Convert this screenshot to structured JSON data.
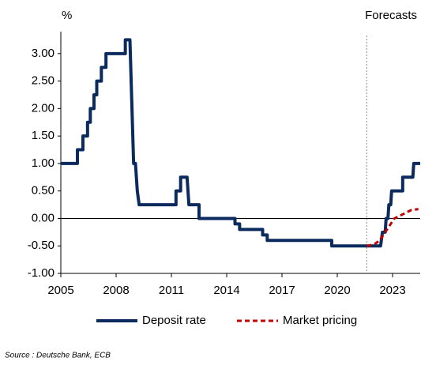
{
  "chart_data": {
    "type": "line",
    "y_label": "%",
    "annotation": "Forecasts",
    "forecast_line": 2021.6,
    "source": "Source : Deutsche Bank, ECB",
    "xlim": [
      2005,
      2024.5
    ],
    "xticks": [
      2005,
      2008,
      2011,
      2014,
      2017,
      2020,
      2023
    ],
    "ylim": [
      -1,
      3.4
    ],
    "yticks": [
      {
        "value": -1,
        "label": "-1.00"
      },
      {
        "value": -0.5,
        "label": "-0.50"
      },
      {
        "value": 0,
        "label": "0.00"
      },
      {
        "value": 0.5,
        "label": "0.50"
      },
      {
        "value": 1,
        "label": "1.00"
      },
      {
        "value": 1.5,
        "label": "1.50"
      },
      {
        "value": 2,
        "label": "2.00"
      },
      {
        "value": 2.5,
        "label": "2.50"
      },
      {
        "value": 3,
        "label": "3.00"
      }
    ],
    "legend": "bottom",
    "series": [
      {
        "name": "Deposit rate",
        "color": "#0b2a5e",
        "style": "solid",
        "x": [
          2005.0,
          2005.9,
          2005.9,
          2006.2,
          2006.2,
          2006.45,
          2006.45,
          2006.6,
          2006.6,
          2006.8,
          2006.8,
          2006.95,
          2006.95,
          2007.2,
          2007.2,
          2007.45,
          2007.45,
          2008.5,
          2008.5,
          2008.75,
          2008.95,
          2009.05,
          2009.15,
          2009.25,
          2011.25,
          2011.25,
          2011.5,
          2011.5,
          2011.85,
          2011.95,
          2012.5,
          2012.5,
          2014.45,
          2014.45,
          2014.7,
          2014.7,
          2015.95,
          2015.95,
          2016.2,
          2016.2,
          2019.7,
          2019.7,
          2022.35,
          2022.45,
          2022.6,
          2022.65,
          2022.75,
          2022.8,
          2022.9,
          2022.95,
          2023.55,
          2023.55,
          2024.1,
          2024.15,
          2024.5
        ],
        "values": [
          1.0,
          1.0,
          1.25,
          1.25,
          1.5,
          1.5,
          1.75,
          1.75,
          2.0,
          2.0,
          2.25,
          2.25,
          2.5,
          2.5,
          2.75,
          2.75,
          3.0,
          3.0,
          3.25,
          3.25,
          1.0,
          1.0,
          0.5,
          0.25,
          0.25,
          0.5,
          0.5,
          0.75,
          0.75,
          0.25,
          0.25,
          0.0,
          0.0,
          -0.1,
          -0.1,
          -0.2,
          -0.2,
          -0.3,
          -0.3,
          -0.4,
          -0.4,
          -0.5,
          -0.5,
          -0.25,
          -0.25,
          0.0,
          0.0,
          0.25,
          0.25,
          0.5,
          0.5,
          0.75,
          0.75,
          1.0,
          1.0
        ]
      },
      {
        "name": "Market pricing",
        "color": "#c00000",
        "style": "dashed",
        "x": [
          2021.6,
          2021.9,
          2022.1,
          2022.3,
          2022.5,
          2022.7,
          2022.9,
          2023.1,
          2023.4,
          2023.7,
          2024.0,
          2024.4
        ],
        "values": [
          -0.5,
          -0.48,
          -0.45,
          -0.4,
          -0.3,
          -0.2,
          -0.1,
          0.0,
          0.05,
          0.1,
          0.15,
          0.17
        ]
      }
    ]
  }
}
